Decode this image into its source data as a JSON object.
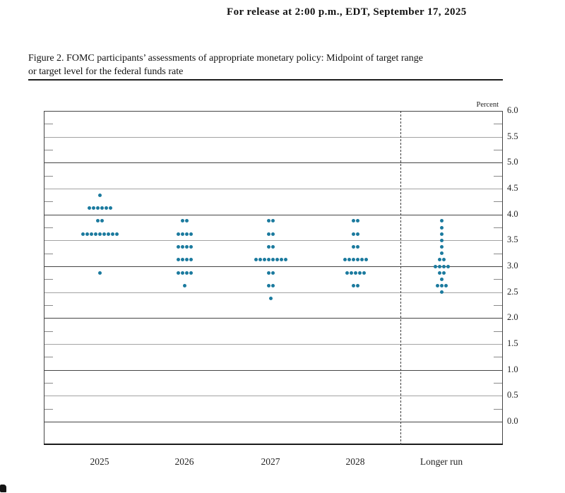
{
  "page": {
    "release_line": "For release at 2:00 p.m., EDT, September 17, 2025"
  },
  "figure": {
    "caption_line1": "Figure 2. FOMC participants’ assessments of appropriate monetary policy: Midpoint of target range",
    "caption_line2": "or target level for the federal funds rate"
  },
  "chart_data": {
    "type": "scatter",
    "subtype": "fomc_dot_plot",
    "title": "FOMC participants’ assessments of appropriate monetary policy: Midpoint of target range or target level for the federal funds rate",
    "unit_label": "Percent",
    "ylim": [
      0.0,
      6.0
    ],
    "y_tick_step": 0.5,
    "y_minor_tick_step": 0.25,
    "y_tick_labels": [
      "6.0",
      "5.5",
      "5.0",
      "4.5",
      "4.0",
      "3.5",
      "3.0",
      "2.5",
      "2.0",
      "1.5",
      "1.0",
      "0.5",
      "0.0"
    ],
    "dot_color": "#1b7a9e",
    "categories": [
      "2025",
      "2026",
      "2027",
      "2028",
      "Longer run"
    ],
    "columns": [
      {
        "label": "2025",
        "dots": [
          {
            "rate": 4.375,
            "count": 1
          },
          {
            "rate": 4.125,
            "count": 6
          },
          {
            "rate": 3.875,
            "count": 2
          },
          {
            "rate": 3.625,
            "count": 9
          },
          {
            "rate": 2.875,
            "count": 1
          }
        ]
      },
      {
        "label": "2026",
        "dots": [
          {
            "rate": 3.875,
            "count": 2
          },
          {
            "rate": 3.625,
            "count": 4
          },
          {
            "rate": 3.375,
            "count": 4
          },
          {
            "rate": 3.125,
            "count": 4
          },
          {
            "rate": 2.875,
            "count": 4
          },
          {
            "rate": 2.625,
            "count": 1
          }
        ]
      },
      {
        "label": "2027",
        "dots": [
          {
            "rate": 3.875,
            "count": 2
          },
          {
            "rate": 3.625,
            "count": 2
          },
          {
            "rate": 3.375,
            "count": 2
          },
          {
            "rate": 3.125,
            "count": 8
          },
          {
            "rate": 2.875,
            "count": 2
          },
          {
            "rate": 2.625,
            "count": 2
          },
          {
            "rate": 2.375,
            "count": 1
          }
        ]
      },
      {
        "label": "2028",
        "dots": [
          {
            "rate": 3.875,
            "count": 2
          },
          {
            "rate": 3.625,
            "count": 2
          },
          {
            "rate": 3.375,
            "count": 2
          },
          {
            "rate": 3.125,
            "count": 6
          },
          {
            "rate": 2.875,
            "count": 5
          },
          {
            "rate": 2.625,
            "count": 2
          }
        ]
      },
      {
        "label": "Longer run",
        "dots": [
          {
            "rate": 3.875,
            "count": 1
          },
          {
            "rate": 3.75,
            "count": 1
          },
          {
            "rate": 3.625,
            "count": 1
          },
          {
            "rate": 3.5,
            "count": 1
          },
          {
            "rate": 3.375,
            "count": 1
          },
          {
            "rate": 3.25,
            "count": 1
          },
          {
            "rate": 3.125,
            "count": 2
          },
          {
            "rate": 3.0,
            "count": 4
          },
          {
            "rate": 2.875,
            "count": 2
          },
          {
            "rate": 2.75,
            "count": 1
          },
          {
            "rate": 2.625,
            "count": 3
          },
          {
            "rate": 2.5,
            "count": 1
          }
        ]
      }
    ]
  }
}
